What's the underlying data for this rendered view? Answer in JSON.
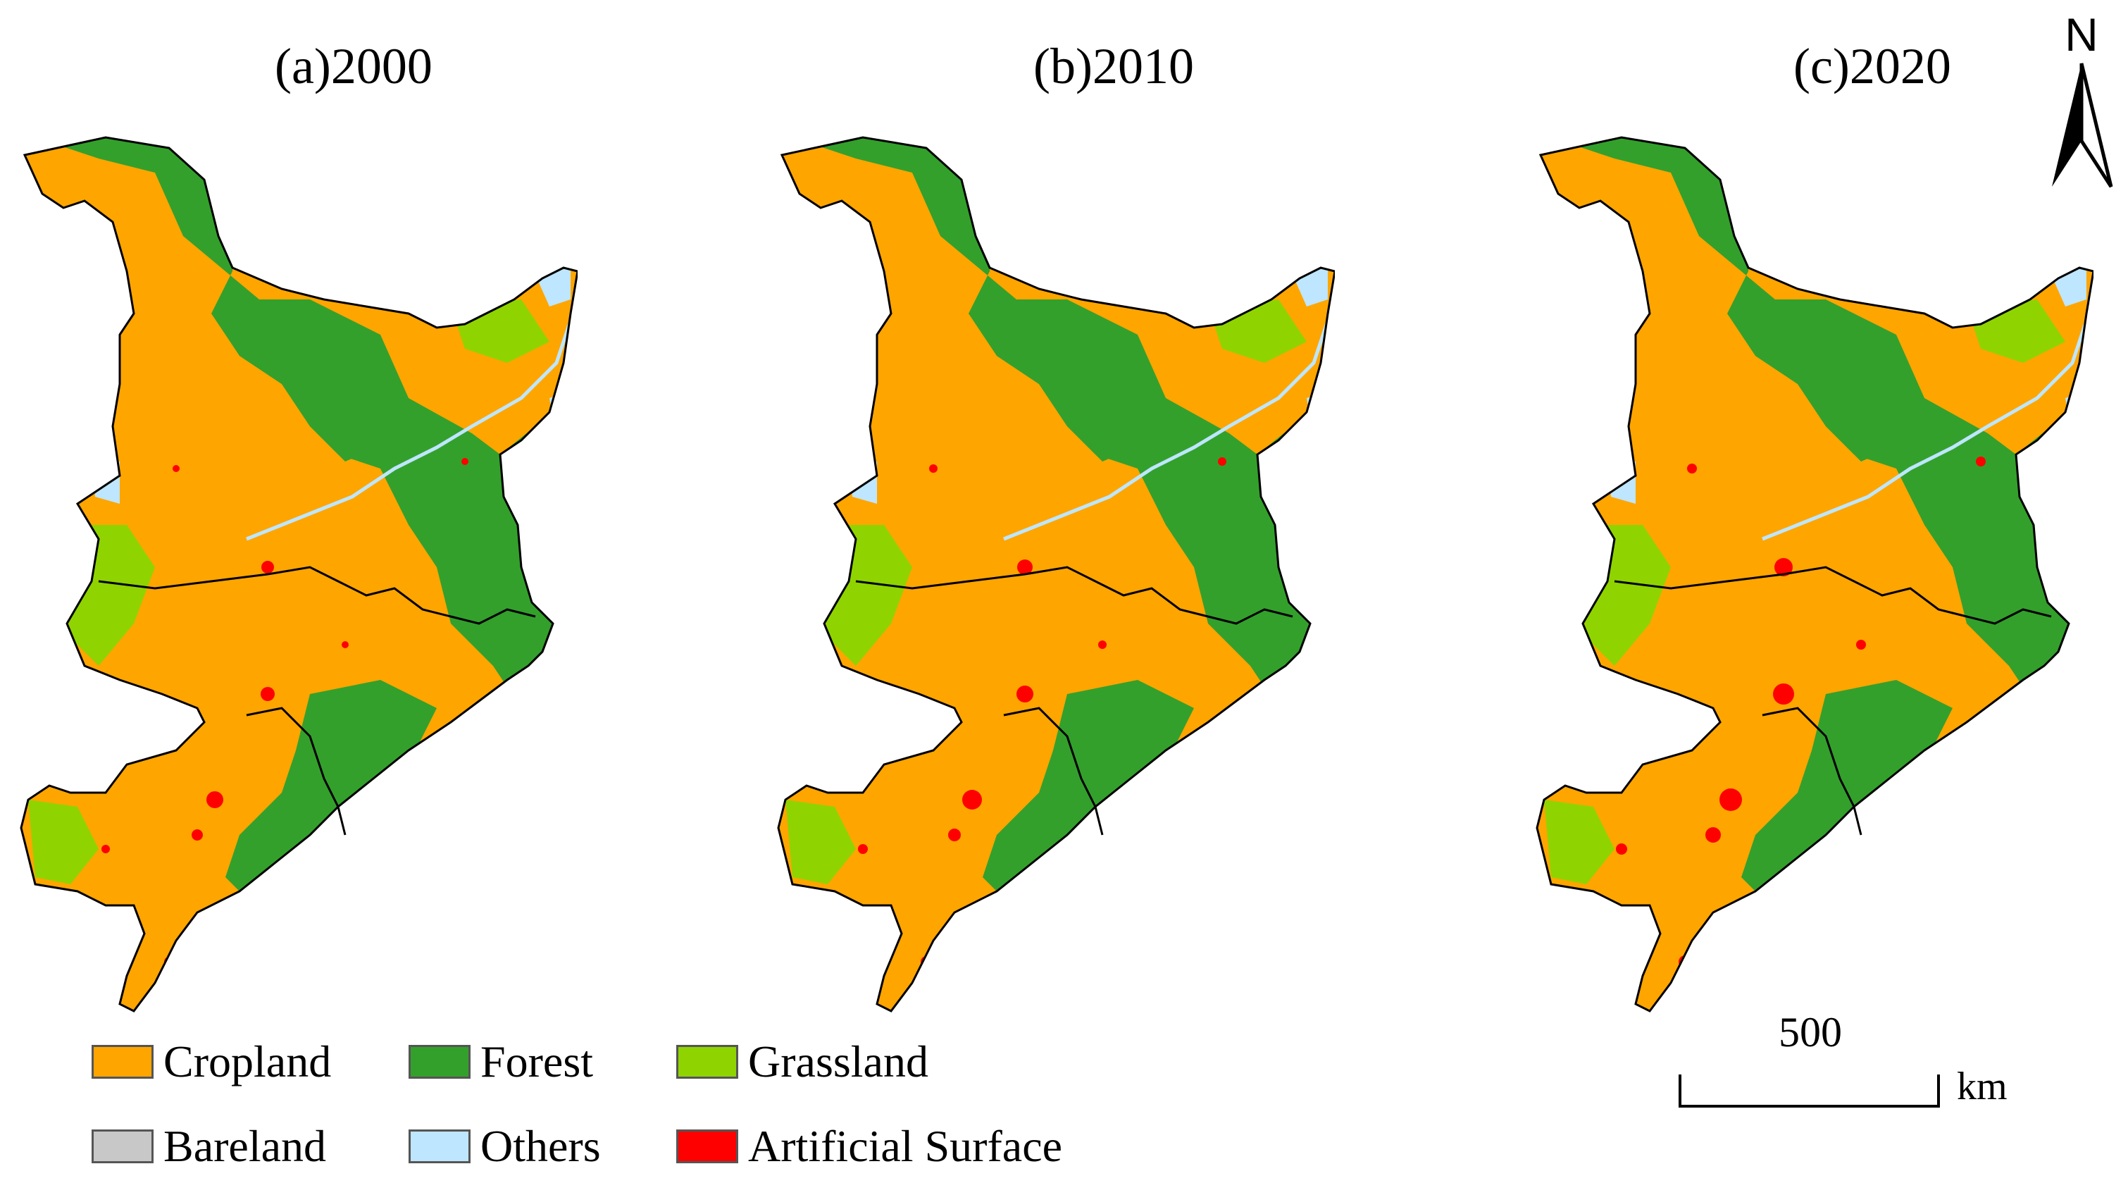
{
  "panels": [
    {
      "label": "(a)2000"
    },
    {
      "label": "(b)2010"
    },
    {
      "label": "(c)2020"
    }
  ],
  "legend": {
    "items": [
      {
        "name": "Cropland",
        "color": "#FFA500"
      },
      {
        "name": "Forest",
        "color": "#33A02C"
      },
      {
        "name": "Grassland",
        "color": "#8FD400"
      },
      {
        "name": "Bareland",
        "color": "#C8C8C8"
      },
      {
        "name": "Others",
        "color": "#BEE6FF"
      },
      {
        "name": "Artificial Surface",
        "color": "#FF0000"
      }
    ]
  },
  "north_arrow": {
    "label": "N"
  },
  "scale_bar": {
    "value": "500",
    "unit": "km"
  }
}
